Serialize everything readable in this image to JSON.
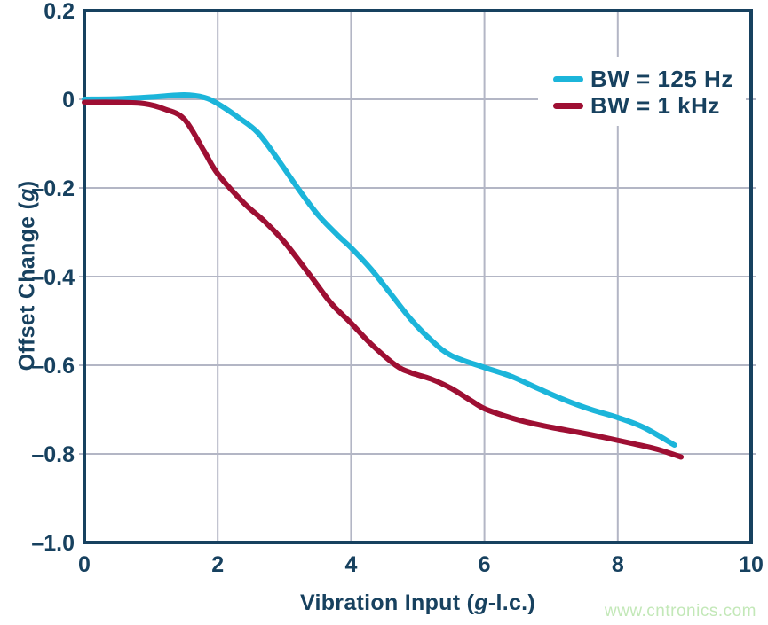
{
  "style": {
    "text_color": "#17415f",
    "frame_color": "#17415f",
    "grid_color": "#b3b6c5",
    "background": "#ffffff"
  },
  "watermark": {
    "text": "www.cntronics.com",
    "color": "#c3e8b8"
  },
  "chart_data": {
    "type": "line",
    "title": "",
    "xlabel": "Vibration Input (g-l.c.)",
    "ylabel": "Offset Change (g)",
    "xlabel_parts": {
      "prefix": "Vibration Input (",
      "italic": "g",
      "suffix": "-l.c.)"
    },
    "ylabel_parts": {
      "prefix": "Offset Change (",
      "italic": "g",
      "suffix": ")"
    },
    "xlim": [
      0,
      10
    ],
    "ylim": [
      -1.0,
      0.2
    ],
    "xticks": [
      0,
      2,
      4,
      6,
      8,
      10
    ],
    "xtick_labels": [
      "0",
      "2",
      "4",
      "6",
      "8",
      "10"
    ],
    "yticks": [
      0.2,
      0,
      -0.2,
      -0.4,
      -0.6,
      -0.8,
      -1.0
    ],
    "ytick_labels": [
      "0.2",
      "0",
      "–0.2",
      "–0.4",
      "–0.6",
      "–0.8",
      "–1.0"
    ],
    "grid": true,
    "legend_position": "upper right",
    "series": [
      {
        "name": "BW = 125 Hz",
        "color": "#1cb5da",
        "points": [
          [
            0,
            0
          ],
          [
            0.5,
            0.001
          ],
          [
            1.0,
            0.005
          ],
          [
            1.5,
            0.01
          ],
          [
            1.8,
            0.004
          ],
          [
            2.0,
            -0.01
          ],
          [
            2.3,
            -0.04
          ],
          [
            2.6,
            -0.075
          ],
          [
            2.9,
            -0.135
          ],
          [
            3.2,
            -0.2
          ],
          [
            3.5,
            -0.26
          ],
          [
            3.8,
            -0.307
          ],
          [
            4.0,
            -0.335
          ],
          [
            4.3,
            -0.383
          ],
          [
            4.6,
            -0.44
          ],
          [
            4.9,
            -0.497
          ],
          [
            5.2,
            -0.543
          ],
          [
            5.5,
            -0.578
          ],
          [
            6.0,
            -0.605
          ],
          [
            6.4,
            -0.625
          ],
          [
            6.8,
            -0.652
          ],
          [
            7.2,
            -0.678
          ],
          [
            7.6,
            -0.7
          ],
          [
            8.0,
            -0.718
          ],
          [
            8.4,
            -0.741
          ],
          [
            8.85,
            -0.78
          ]
        ]
      },
      {
        "name": "BW = 1 kHz",
        "color": "#9e0f33",
        "points": [
          [
            0,
            -0.007
          ],
          [
            0.5,
            -0.007
          ],
          [
            0.9,
            -0.01
          ],
          [
            1.2,
            -0.022
          ],
          [
            1.5,
            -0.045
          ],
          [
            1.8,
            -0.118
          ],
          [
            2.0,
            -0.168
          ],
          [
            2.4,
            -0.235
          ],
          [
            2.7,
            -0.275
          ],
          [
            3.0,
            -0.322
          ],
          [
            3.4,
            -0.4
          ],
          [
            3.7,
            -0.46
          ],
          [
            4.0,
            -0.505
          ],
          [
            4.3,
            -0.552
          ],
          [
            4.67,
            -0.6
          ],
          [
            4.9,
            -0.617
          ],
          [
            5.2,
            -0.631
          ],
          [
            5.5,
            -0.652
          ],
          [
            5.8,
            -0.68
          ],
          [
            6.0,
            -0.698
          ],
          [
            6.3,
            -0.714
          ],
          [
            6.6,
            -0.727
          ],
          [
            7.0,
            -0.74
          ],
          [
            7.4,
            -0.751
          ],
          [
            7.8,
            -0.763
          ],
          [
            8.2,
            -0.776
          ],
          [
            8.6,
            -0.79
          ],
          [
            8.95,
            -0.807
          ]
        ]
      }
    ]
  }
}
